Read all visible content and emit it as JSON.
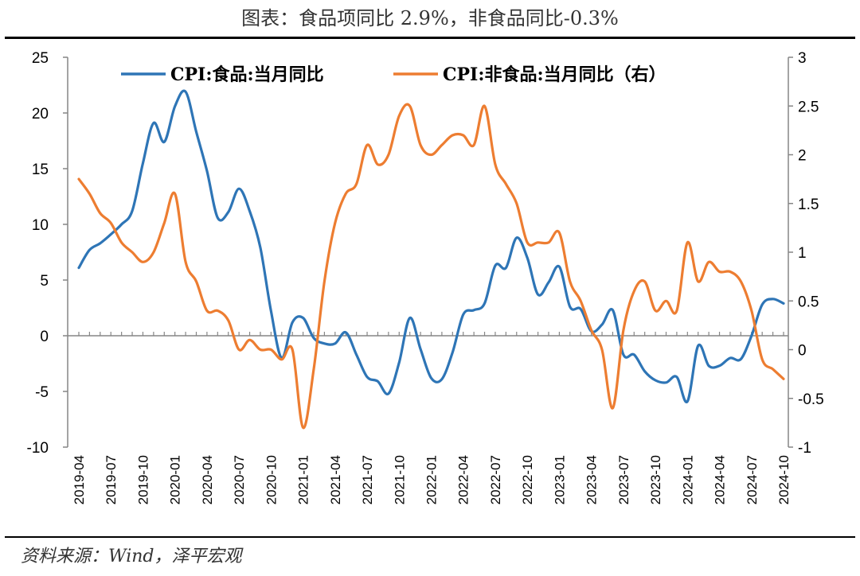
{
  "page": {
    "title": "图表：食品项同比 2.9%，非食品同比-0.3%",
    "source": "资料来源：Wind，泽平宏观"
  },
  "chart_data": {
    "type": "line",
    "x": [
      "2019-04",
      "2019-05",
      "2019-06",
      "2019-07",
      "2019-08",
      "2019-09",
      "2019-10",
      "2019-11",
      "2019-12",
      "2020-01",
      "2020-02",
      "2020-03",
      "2020-04",
      "2020-05",
      "2020-06",
      "2020-07",
      "2020-08",
      "2020-09",
      "2020-10",
      "2020-11",
      "2020-12",
      "2021-01",
      "2021-02",
      "2021-03",
      "2021-04",
      "2021-05",
      "2021-06",
      "2021-07",
      "2021-08",
      "2021-09",
      "2021-10",
      "2021-11",
      "2021-12",
      "2022-01",
      "2022-02",
      "2022-03",
      "2022-04",
      "2022-05",
      "2022-06",
      "2022-07",
      "2022-08",
      "2022-09",
      "2022-10",
      "2022-11",
      "2022-12",
      "2023-01",
      "2023-02",
      "2023-03",
      "2023-04",
      "2023-05",
      "2023-06",
      "2023-07",
      "2023-08",
      "2023-09",
      "2023-10",
      "2023-11",
      "2023-12",
      "2024-01",
      "2024-02",
      "2024-03",
      "2024-04",
      "2024-05",
      "2024-06",
      "2024-07",
      "2024-08",
      "2024-09",
      "2024-10"
    ],
    "x_tick_labels": [
      "2019-04",
      "2019-07",
      "2019-10",
      "2020-01",
      "2020-04",
      "2020-07",
      "2020-10",
      "2021-01",
      "2021-04",
      "2021-07",
      "2021-10",
      "2022-01",
      "2022-04",
      "2022-07",
      "2022-10",
      "2023-01",
      "2023-04",
      "2023-07",
      "2023-10",
      "2024-01",
      "2024-04",
      "2024-07",
      "2024-10"
    ],
    "series": [
      {
        "name": "CPI:食品:当月同比",
        "axis": "left",
        "color": "#2E75B6",
        "values": [
          6.1,
          7.7,
          8.3,
          9.1,
          10.0,
          11.2,
          15.5,
          19.1,
          17.4,
          20.6,
          21.9,
          18.3,
          14.8,
          10.6,
          11.1,
          13.2,
          11.2,
          7.9,
          2.2,
          -2.0,
          1.2,
          1.6,
          -0.2,
          -0.7,
          -0.7,
          0.3,
          -1.7,
          -3.7,
          -4.1,
          -5.2,
          -2.4,
          1.6,
          -1.2,
          -3.8,
          -3.9,
          -1.5,
          1.9,
          2.3,
          2.9,
          6.3,
          6.1,
          8.8,
          7.0,
          3.7,
          4.8,
          6.2,
          2.6,
          2.4,
          0.4,
          1.0,
          2.3,
          -1.7,
          -1.7,
          -3.2,
          -4.0,
          -4.2,
          -3.7,
          -5.9,
          -0.9,
          -2.7,
          -2.7,
          -2.0,
          -2.1,
          0.0,
          2.8,
          3.3,
          2.9
        ]
      },
      {
        "name": "CPI:非食品:当月同比（右）",
        "axis": "right",
        "color": "#ED7D31",
        "values": [
          1.75,
          1.6,
          1.4,
          1.3,
          1.1,
          1.0,
          0.9,
          1.0,
          1.3,
          1.6,
          0.9,
          0.7,
          0.4,
          0.4,
          0.3,
          0.0,
          0.1,
          0.0,
          0.0,
          -0.1,
          0.0,
          -0.8,
          -0.2,
          0.7,
          1.3,
          1.6,
          1.7,
          2.1,
          1.9,
          2.0,
          2.4,
          2.5,
          2.1,
          2.0,
          2.1,
          2.2,
          2.2,
          2.1,
          2.5,
          1.9,
          1.7,
          1.5,
          1.1,
          1.1,
          1.1,
          1.2,
          0.7,
          0.5,
          0.2,
          0.0,
          -0.6,
          0.2,
          0.6,
          0.7,
          0.4,
          0.5,
          0.4,
          1.1,
          0.7,
          0.9,
          0.8,
          0.8,
          0.7,
          0.4,
          -0.1,
          -0.2,
          -0.3
        ]
      }
    ],
    "y_left": {
      "ylim": [
        -10,
        25
      ],
      "ticks": [
        25,
        20,
        15,
        10,
        5,
        0,
        -5,
        -10
      ]
    },
    "y_right": {
      "ylim": [
        -1,
        3
      ],
      "ticks": [
        3,
        2.5,
        2,
        1.5,
        1,
        0.5,
        0,
        -0.5,
        -1
      ]
    },
    "legend": {
      "placement": "top-center"
    },
    "grid": false
  }
}
